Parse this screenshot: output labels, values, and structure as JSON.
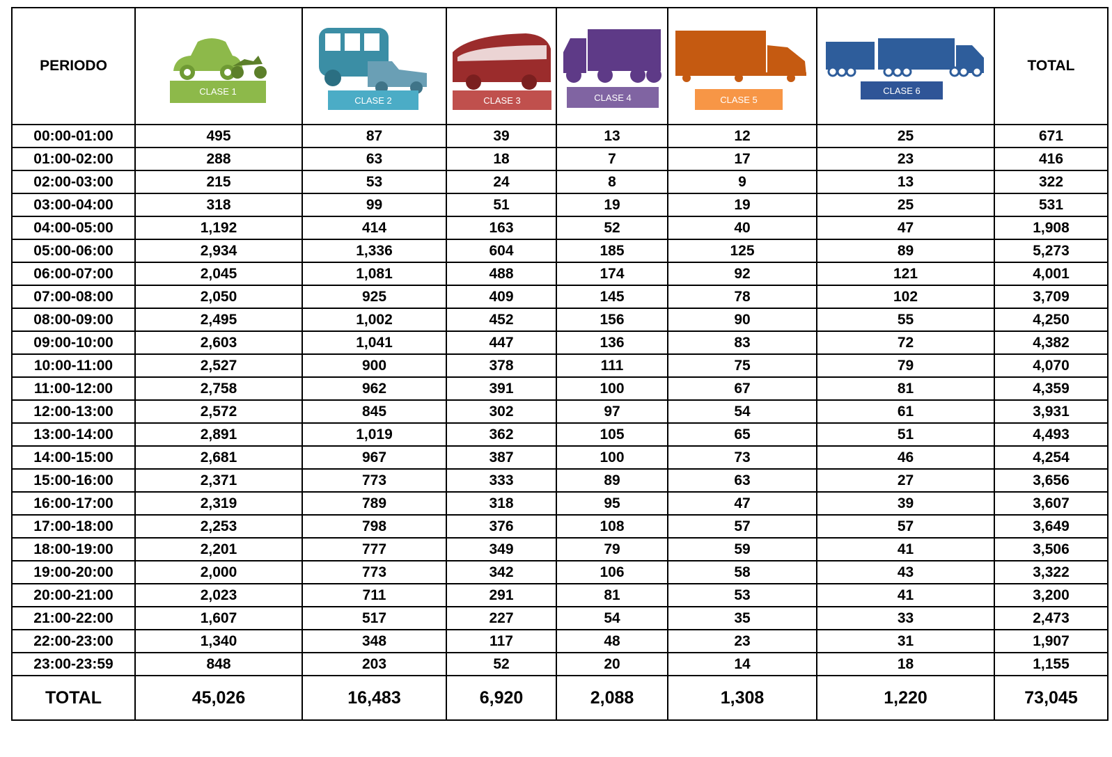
{
  "table": {
    "header": [
      "PERIODO",
      "CLASE 1",
      "CLASE 2",
      "CLASE 3",
      "CLASE 4",
      "CLASE 5",
      "CLASE 6",
      "TOTAL"
    ],
    "rows": [
      [
        "00:00-01:00",
        "495",
        "87",
        "39",
        "13",
        "12",
        "25",
        "671"
      ],
      [
        "01:00-02:00",
        "288",
        "63",
        "18",
        "7",
        "17",
        "23",
        "416"
      ],
      [
        "02:00-03:00",
        "215",
        "53",
        "24",
        "8",
        "9",
        "13",
        "322"
      ],
      [
        "03:00-04:00",
        "318",
        "99",
        "51",
        "19",
        "19",
        "25",
        "531"
      ],
      [
        "04:00-05:00",
        "1,192",
        "414",
        "163",
        "52",
        "40",
        "47",
        "1,908"
      ],
      [
        "05:00-06:00",
        "2,934",
        "1,336",
        "604",
        "185",
        "125",
        "89",
        "5,273"
      ],
      [
        "06:00-07:00",
        "2,045",
        "1,081",
        "488",
        "174",
        "92",
        "121",
        "4,001"
      ],
      [
        "07:00-08:00",
        "2,050",
        "925",
        "409",
        "145",
        "78",
        "102",
        "3,709"
      ],
      [
        "08:00-09:00",
        "2,495",
        "1,002",
        "452",
        "156",
        "90",
        "55",
        "4,250"
      ],
      [
        "09:00-10:00",
        "2,603",
        "1,041",
        "447",
        "136",
        "83",
        "72",
        "4,382"
      ],
      [
        "10:00-11:00",
        "2,527",
        "900",
        "378",
        "111",
        "75",
        "79",
        "4,070"
      ],
      [
        "11:00-12:00",
        "2,758",
        "962",
        "391",
        "100",
        "67",
        "81",
        "4,359"
      ],
      [
        "12:00-13:00",
        "2,572",
        "845",
        "302",
        "97",
        "54",
        "61",
        "3,931"
      ],
      [
        "13:00-14:00",
        "2,891",
        "1,019",
        "362",
        "105",
        "65",
        "51",
        "4,493"
      ],
      [
        "14:00-15:00",
        "2,681",
        "967",
        "387",
        "100",
        "73",
        "46",
        "4,254"
      ],
      [
        "15:00-16:00",
        "2,371",
        "773",
        "333",
        "89",
        "63",
        "27",
        "3,656"
      ],
      [
        "16:00-17:00",
        "2,319",
        "789",
        "318",
        "95",
        "47",
        "39",
        "3,607"
      ],
      [
        "17:00-18:00",
        "2,253",
        "798",
        "376",
        "108",
        "57",
        "57",
        "3,649"
      ],
      [
        "18:00-19:00",
        "2,201",
        "777",
        "349",
        "79",
        "59",
        "41",
        "3,506"
      ],
      [
        "19:00-20:00",
        "2,000",
        "773",
        "342",
        "106",
        "58",
        "43",
        "3,322"
      ],
      [
        "20:00-21:00",
        "2,023",
        "711",
        "291",
        "81",
        "53",
        "41",
        "3,200"
      ],
      [
        "21:00-22:00",
        "1,607",
        "517",
        "227",
        "54",
        "35",
        "33",
        "2,473"
      ],
      [
        "22:00-23:00",
        "1,340",
        "348",
        "117",
        "48",
        "23",
        "31",
        "1,907"
      ],
      [
        "23:00-23:59",
        "848",
        "203",
        "52",
        "20",
        "14",
        "18",
        "1,155"
      ]
    ],
    "total": [
      "TOTAL",
      "45,026",
      "16,483",
      "6,920",
      "2,088",
      "1,308",
      "1,220",
      "73,045"
    ]
  }
}
